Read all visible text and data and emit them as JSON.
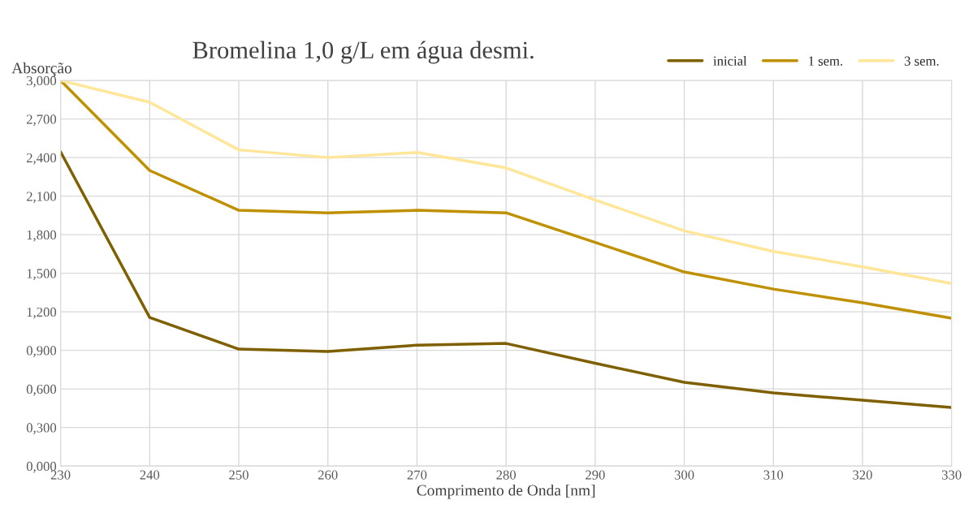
{
  "chart_data": {
    "type": "line",
    "title": "Bromelina 1,0 g/L em água desmi.",
    "xlabel": "Comprimento de Onda [nm]",
    "ylabel": "Absorção",
    "x": [
      230,
      240,
      250,
      260,
      270,
      280,
      290,
      300,
      310,
      320,
      330
    ],
    "series": [
      {
        "name": "inicial",
        "color": "#7f6000",
        "values": [
          2.445,
          1.156,
          0.91,
          0.891,
          0.941,
          0.954,
          0.8,
          0.651,
          0.569,
          0.512,
          0.455
        ]
      },
      {
        "name": "1 sem.",
        "color": "#bf9000",
        "values": [
          3.0,
          2.3,
          1.99,
          1.97,
          1.99,
          1.97,
          1.74,
          1.51,
          1.377,
          1.27,
          1.15
        ]
      },
      {
        "name": "3 sem.",
        "color": "#ffe699",
        "values": [
          3.0,
          2.83,
          2.46,
          2.4,
          2.44,
          2.32,
          2.07,
          1.83,
          1.67,
          1.55,
          1.42
        ]
      }
    ],
    "xlim": [
      230,
      330
    ],
    "xticks": [
      230,
      240,
      250,
      260,
      270,
      280,
      290,
      300,
      310,
      320,
      330
    ],
    "ylim": [
      0,
      3
    ],
    "yticks": [
      {
        "value": 0,
        "label": "0,000"
      },
      {
        "value": 0.3,
        "label": "0,300"
      },
      {
        "value": 0.6,
        "label": "0,600"
      },
      {
        "value": 0.9,
        "label": "0,900"
      },
      {
        "value": 1.2,
        "label": "1,200"
      },
      {
        "value": 1.5,
        "label": "1,500"
      },
      {
        "value": 1.8,
        "label": "1,800"
      },
      {
        "value": 2.1,
        "label": "2,100"
      },
      {
        "value": 2.4,
        "label": "2,400"
      },
      {
        "value": 2.7,
        "label": "2,700"
      },
      {
        "value": 3.0,
        "label": "3,000"
      }
    ],
    "grid": true,
    "legend": "top right",
    "marker": "none",
    "line_style": "solid"
  }
}
